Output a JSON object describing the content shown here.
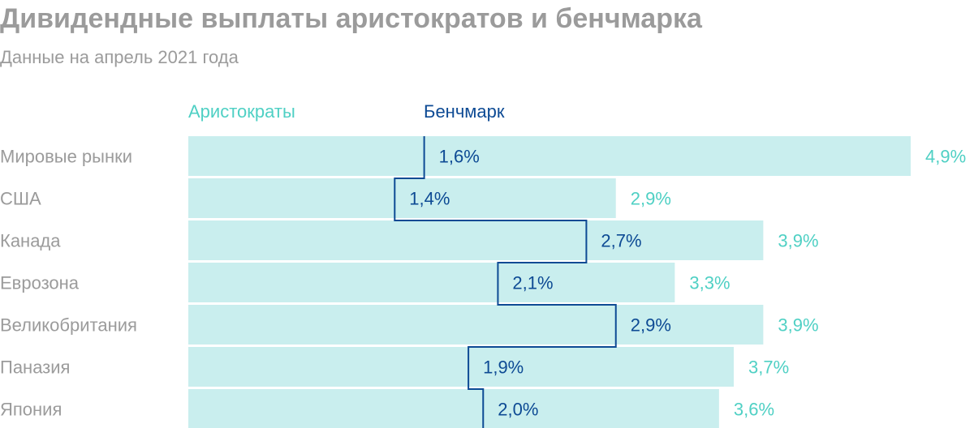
{
  "title": "Дивидендные выплаты аристократов и бенчмарка",
  "subtitle": "Данные на апрель 2021 года",
  "colors": {
    "aristocrats_bar": "#c9eeee",
    "aristocrats_text": "#4fd0c4",
    "benchmark": "#0d4a94",
    "category_text": "#9b9b9b",
    "title_text": "#9b9b9b"
  },
  "chart_data": {
    "type": "bar",
    "orientation": "horizontal",
    "categories": [
      "Мировые рынки",
      "США",
      "Канада",
      "Еврозона",
      "Великобритания",
      "Паназия",
      "Япония"
    ],
    "series": [
      {
        "name": "Аристократы",
        "values": [
          4.9,
          2.9,
          3.9,
          3.3,
          3.9,
          3.7,
          3.6
        ],
        "labels": [
          "4,9%",
          "2,9%",
          "3,9%",
          "3,3%",
          "3,9%",
          "3,7%",
          "3,6%"
        ]
      },
      {
        "name": "Бенчмарк",
        "values": [
          1.6,
          1.4,
          2.7,
          2.1,
          2.9,
          1.9,
          2.0
        ],
        "labels": [
          "1,6%",
          "1,4%",
          "2,7%",
          "2,1%",
          "2,9%",
          "1,9%",
          "2,0%"
        ]
      }
    ],
    "xlim": [
      0,
      4.9
    ],
    "legend": "top-left",
    "grid": false
  }
}
